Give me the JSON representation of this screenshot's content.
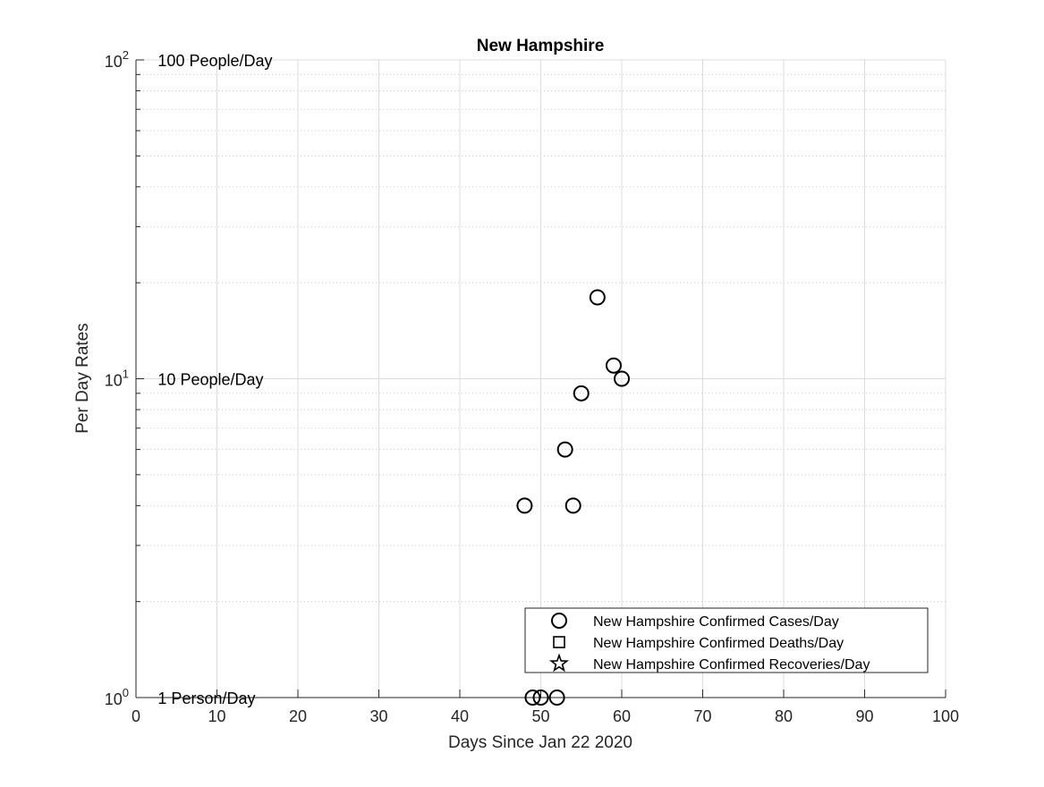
{
  "chart_data": {
    "type": "scatter",
    "title": "New Hampshire",
    "xlabel": "Days Since Jan 22 2020",
    "ylabel": "Per Day Rates",
    "xlim": [
      0,
      100
    ],
    "ylim": [
      1,
      100
    ],
    "yscale": "log",
    "grid": true,
    "legend_location": "bottom-right",
    "x_ticks": [
      0,
      10,
      20,
      30,
      40,
      50,
      60,
      70,
      80,
      90,
      100
    ],
    "x_tick_labels": [
      "0",
      "10",
      "20",
      "30",
      "40",
      "50",
      "60",
      "70",
      "80",
      "90",
      "100"
    ],
    "y_ticks": [
      {
        "value": 1,
        "base": "10",
        "exp": "0"
      },
      {
        "value": 10,
        "base": "10",
        "exp": "1"
      },
      {
        "value": 100,
        "base": "10",
        "exp": "2"
      }
    ],
    "annotations": [
      {
        "text": "100 People/Day",
        "x": 2.7,
        "y": 100
      },
      {
        "text": "10 People/Day",
        "x": 2.7,
        "y": 10
      },
      {
        "text": "1 Person/Day",
        "x": 2.7,
        "y": 1
      }
    ],
    "series": [
      {
        "name": "New Hampshire Confirmed Cases/Day",
        "marker": "circle",
        "color": "#000000",
        "points": [
          {
            "x": 48,
            "y": 4
          },
          {
            "x": 49,
            "y": 1
          },
          {
            "x": 50,
            "y": 1
          },
          {
            "x": 52,
            "y": 1
          },
          {
            "x": 53,
            "y": 6
          },
          {
            "x": 54,
            "y": 4
          },
          {
            "x": 55,
            "y": 9
          },
          {
            "x": 57,
            "y": 18
          },
          {
            "x": 59,
            "y": 11
          },
          {
            "x": 60,
            "y": 10
          }
        ]
      },
      {
        "name": "New Hampshire Confirmed Deaths/Day",
        "marker": "square",
        "color": "#000000",
        "points": []
      },
      {
        "name": "New Hampshire Confirmed Recoveries/Day",
        "marker": "star",
        "color": "#000000",
        "points": []
      }
    ],
    "colors": {
      "axis": "#262626",
      "grid": "#dcdcdc",
      "minor_grid": "#bdbdbd",
      "background": "#ffffff"
    }
  }
}
